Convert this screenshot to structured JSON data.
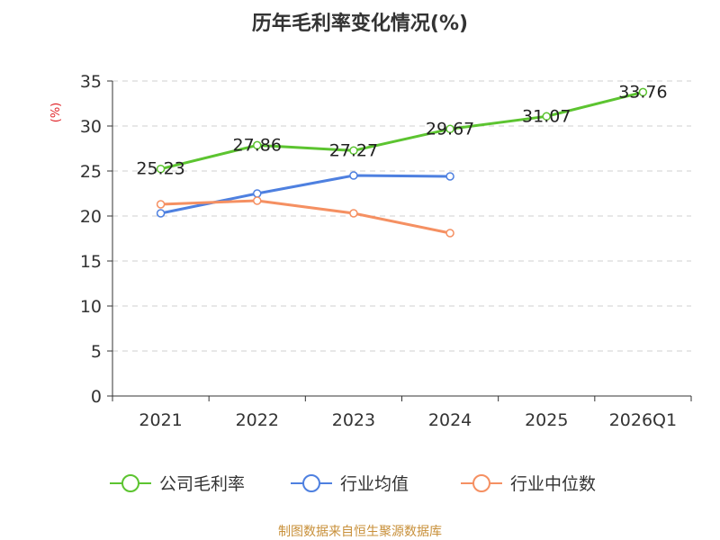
{
  "chart_data": {
    "type": "line",
    "title": "历年毛利率变化情况(%)",
    "ylabel": "(%)",
    "xlabel": "",
    "ylim": [
      0,
      35
    ],
    "yticks": [
      0,
      5,
      10,
      15,
      20,
      25,
      30,
      35
    ],
    "categories": [
      "2021",
      "2022",
      "2023",
      "2024",
      "2025",
      "2026Q1"
    ],
    "grid": true,
    "legend_position": "bottom",
    "series": [
      {
        "name": "公司毛利率",
        "color": "#5cc430",
        "show_labels": true,
        "values": [
          25.23,
          27.86,
          27.27,
          29.67,
          31.07,
          33.76
        ],
        "labels": [
          "25.23",
          "27.86",
          "27.27",
          "29.67",
          "31.07",
          "33.76"
        ]
      },
      {
        "name": "行业均值",
        "color": "#4e80e0",
        "show_labels": false,
        "values": [
          20.3,
          22.5,
          24.5,
          24.4,
          null,
          null
        ]
      },
      {
        "name": "行业中位数",
        "color": "#f59062",
        "show_labels": false,
        "values": [
          21.3,
          21.7,
          20.3,
          18.1,
          null,
          null
        ]
      }
    ]
  },
  "source": "制图数据来自恒生聚源数据库"
}
